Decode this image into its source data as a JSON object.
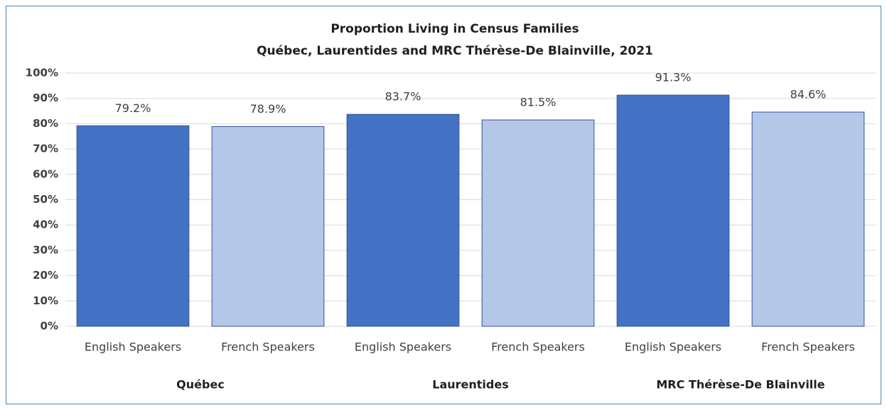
{
  "chart_data": {
    "type": "bar",
    "title": "Proportion Living in Census Families",
    "subtitle": "Québec, Laurentides and MRC Thérèse-De Blainville,  2021",
    "categories": [
      "English Speakers",
      "French Speakers",
      "English Speakers",
      "French Speakers",
      "English Speakers",
      "French Speakers"
    ],
    "groups": [
      "Québec",
      "Laurentides",
      "MRC Thérèse-De Blainville"
    ],
    "values": [
      79.2,
      78.9,
      83.7,
      81.5,
      91.3,
      84.6
    ],
    "value_labels": [
      "79.2%",
      "78.9%",
      "83.7%",
      "81.5%",
      "91.3%",
      "84.6%"
    ],
    "colors": [
      "#4472c4",
      "#b4c7e7",
      "#4472c4",
      "#b4c7e7",
      "#4472c4",
      "#b4c7e7"
    ],
    "ylim": [
      0,
      100
    ],
    "yticks": [
      {
        "value": 0,
        "label": "0%"
      },
      {
        "value": 10,
        "label": "10%"
      },
      {
        "value": 20,
        "label": "20%"
      },
      {
        "value": 30,
        "label": "30%"
      },
      {
        "value": 40,
        "label": "40%"
      },
      {
        "value": 50,
        "label": "50%"
      },
      {
        "value": 60,
        "label": "60%"
      },
      {
        "value": 70,
        "label": "70%"
      },
      {
        "value": 80,
        "label": "80%"
      },
      {
        "value": 90,
        "label": "90%"
      },
      {
        "value": 100,
        "label": "100%"
      }
    ],
    "grid": true
  }
}
